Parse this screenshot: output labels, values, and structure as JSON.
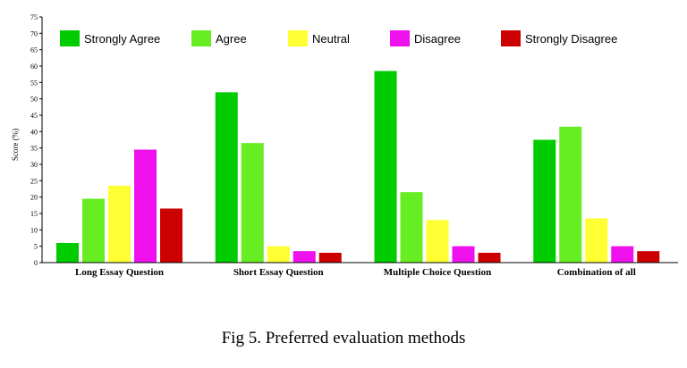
{
  "chart_data": {
    "type": "bar",
    "categories": [
      "Long Essay Question",
      "Short Essay Question",
      "Multiple Choice Question",
      "Combination of all"
    ],
    "series": [
      {
        "name": "Strongly Agree",
        "color": "#00cc00",
        "values": [
          6,
          52,
          58.5,
          37.5
        ]
      },
      {
        "name": "Agree",
        "color": "#66ee22",
        "values": [
          19.5,
          36.5,
          21.5,
          41.5
        ]
      },
      {
        "name": "Neutral",
        "color": "#ffff33",
        "values": [
          23.5,
          5,
          13,
          13.5
        ]
      },
      {
        "name": "Disagree",
        "color": "#ee11ee",
        "values": [
          34.5,
          3.5,
          5,
          5
        ]
      },
      {
        "name": "Strongly Disagree",
        "color": "#cc0000",
        "values": [
          16.5,
          3,
          3,
          3.5
        ]
      }
    ],
    "ylabel": "Score (%)",
    "ylim": [
      0,
      75
    ],
    "yticks": [
      0,
      5,
      10,
      15,
      20,
      25,
      30,
      35,
      40,
      45,
      50,
      55,
      60,
      65,
      70,
      75
    ],
    "legend_position": "top",
    "grid": false
  },
  "caption": "Fig 5. Preferred evaluation methods"
}
